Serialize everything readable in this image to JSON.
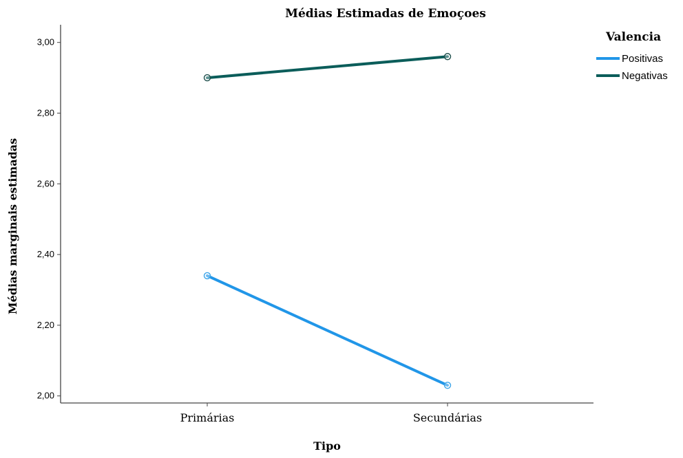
{
  "chart_data": {
    "type": "line",
    "title": "Médias Estimadas de Emoçoes",
    "xlabel": "Tipo",
    "ylabel": "Médias marginais estimadas",
    "categories": [
      "Primárias",
      "Secundárias"
    ],
    "ylim": [
      1.98,
      3.05
    ],
    "yticks": [
      2.0,
      2.2,
      2.4,
      2.6,
      2.8,
      3.0
    ],
    "ytick_labels": [
      "2,00",
      "2,20",
      "2,40",
      "2,60",
      "2,80",
      "3,00"
    ],
    "grid": false,
    "legend": {
      "title": "Valencia",
      "position": "top-right"
    },
    "series": [
      {
        "name": "Positivas",
        "values": [
          2.34,
          2.03
        ],
        "color": "#2196e8"
      },
      {
        "name": "Negativas",
        "values": [
          2.9,
          2.96
        ],
        "color": "#0b5d5a"
      }
    ]
  }
}
